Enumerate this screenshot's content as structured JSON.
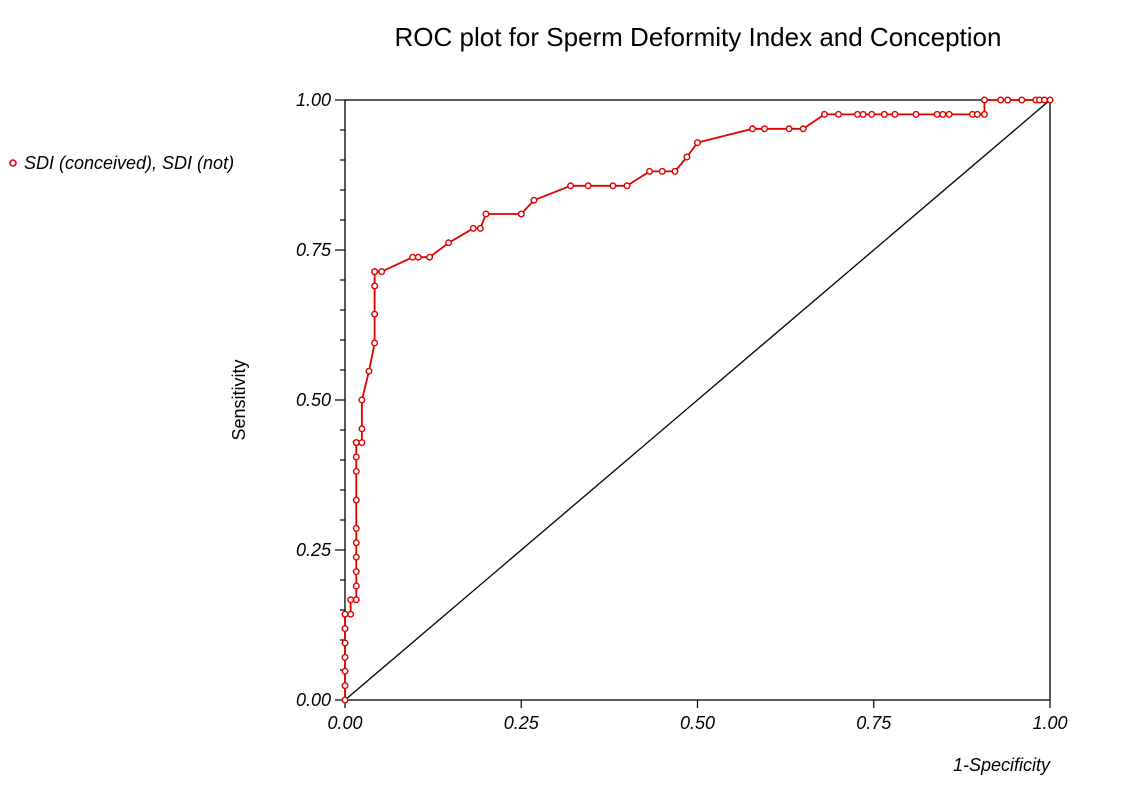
{
  "chart_data": {
    "type": "line",
    "title": "ROC plot for Sperm Deformity Index and Conception",
    "xlabel": "1-Specificity",
    "ylabel": "Sensitivity",
    "xlim": [
      0,
      1
    ],
    "ylim": [
      0,
      1
    ],
    "x_ticks": [
      "0.00",
      "0.25",
      "0.50",
      "0.75",
      "1.00"
    ],
    "y_ticks": [
      "0.00",
      "0.25",
      "0.50",
      "0.75",
      "1.00"
    ],
    "grid": false,
    "legend_position": "left",
    "diagonal_reference": true,
    "series": [
      {
        "name": "SDI (conceived), SDI (not)",
        "color": "#e00000",
        "x": [
          0.0,
          0.0,
          0.0,
          0.0,
          0.0,
          0.0,
          0.0,
          0.008,
          0.008,
          0.016,
          0.016,
          0.016,
          0.016,
          0.016,
          0.016,
          0.016,
          0.016,
          0.016,
          0.016,
          0.016,
          0.024,
          0.024,
          0.024,
          0.034,
          0.042,
          0.042,
          0.042,
          0.042,
          0.042,
          0.052,
          0.096,
          0.104,
          0.12,
          0.147,
          0.182,
          0.192,
          0.2,
          0.25,
          0.268,
          0.32,
          0.345,
          0.38,
          0.4,
          0.432,
          0.45,
          0.468,
          0.485,
          0.5,
          0.578,
          0.595,
          0.63,
          0.65,
          0.68,
          0.7,
          0.727,
          0.735,
          0.747,
          0.765,
          0.78,
          0.81,
          0.84,
          0.848,
          0.857,
          0.89,
          0.897,
          0.907,
          0.907,
          0.93,
          0.94,
          0.96,
          0.98,
          0.985,
          0.992,
          1.0
        ],
        "y": [
          0.0,
          0.024,
          0.048,
          0.071,
          0.095,
          0.119,
          0.143,
          0.143,
          0.167,
          0.167,
          0.19,
          0.214,
          0.238,
          0.262,
          0.286,
          0.333,
          0.381,
          0.405,
          0.429,
          0.429,
          0.429,
          0.452,
          0.5,
          0.548,
          0.595,
          0.643,
          0.69,
          0.714,
          0.714,
          0.714,
          0.738,
          0.738,
          0.738,
          0.762,
          0.786,
          0.786,
          0.81,
          0.81,
          0.833,
          0.857,
          0.857,
          0.857,
          0.857,
          0.881,
          0.881,
          0.881,
          0.905,
          0.929,
          0.952,
          0.952,
          0.952,
          0.952,
          0.976,
          0.976,
          0.976,
          0.976,
          0.976,
          0.976,
          0.976,
          0.976,
          0.976,
          0.976,
          0.976,
          0.976,
          0.976,
          0.976,
          1.0,
          1.0,
          1.0,
          1.0,
          1.0,
          1.0,
          1.0,
          1.0
        ]
      }
    ]
  }
}
